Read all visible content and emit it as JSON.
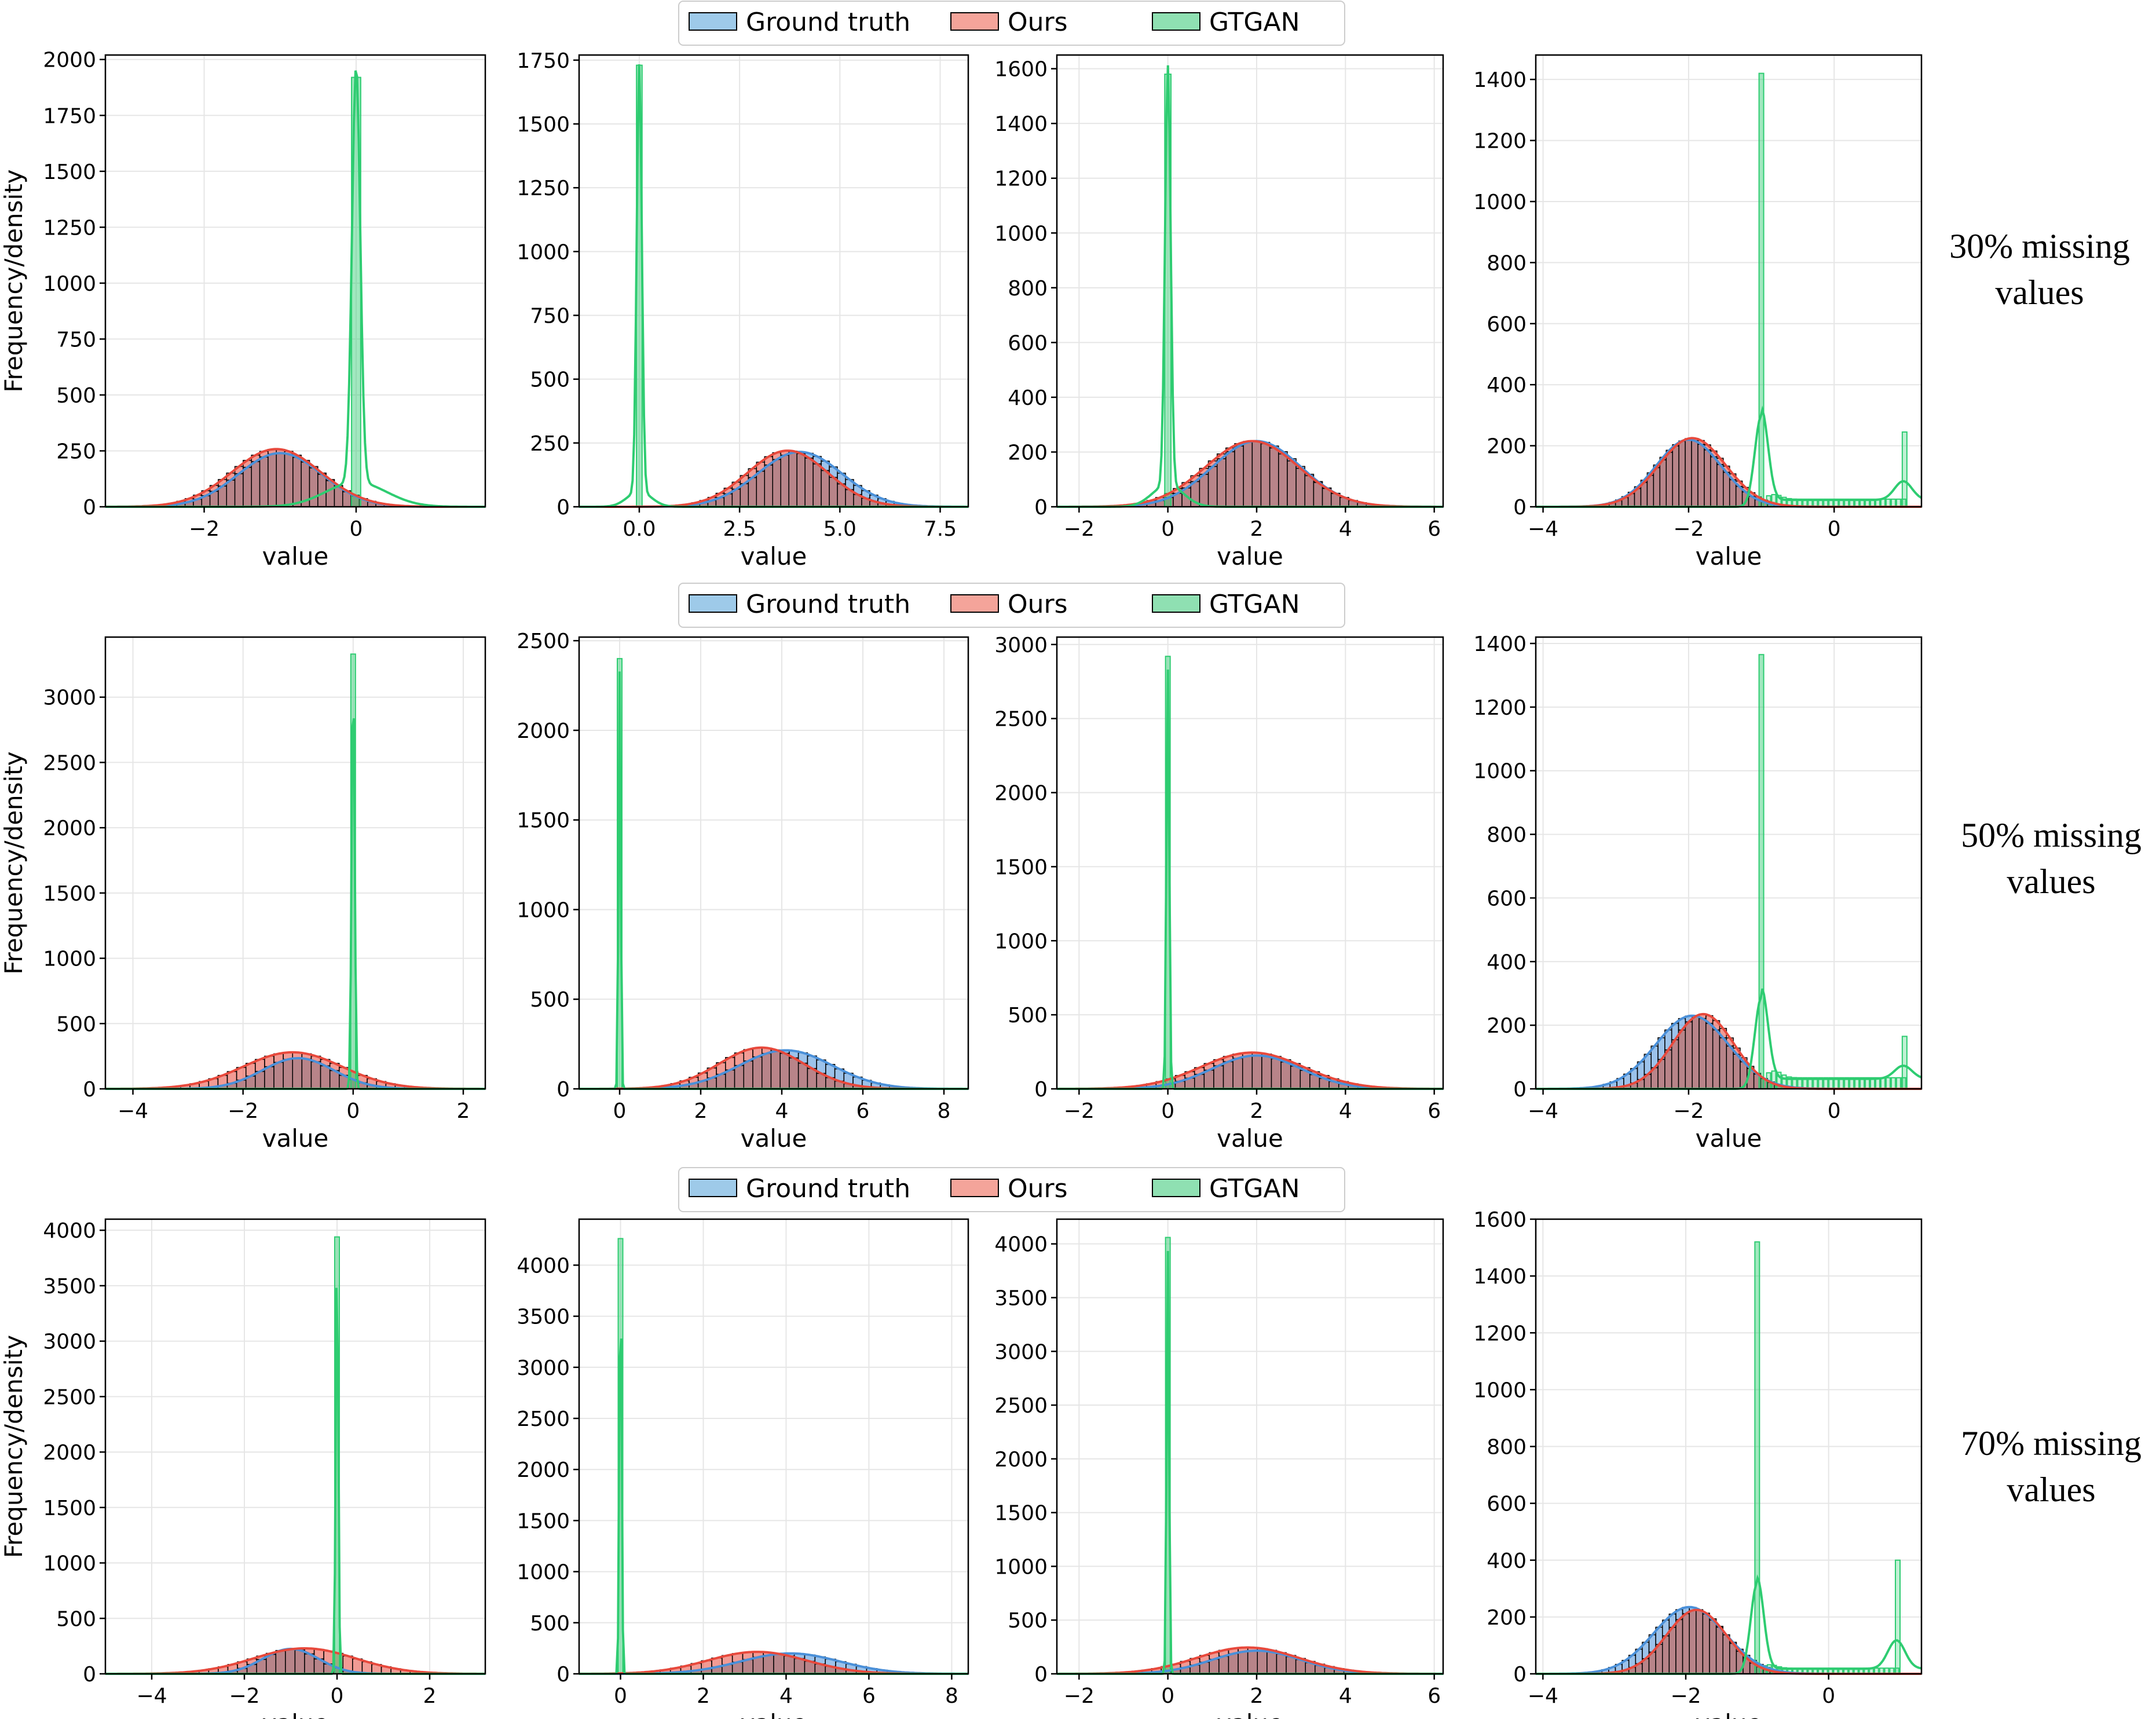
{
  "figure": {
    "row_labels": [
      {
        "line1": "30% missing",
        "line2": "values"
      },
      {
        "line1": "50% missing",
        "line2": "values"
      },
      {
        "line1": "70% missing",
        "line2": "values"
      }
    ],
    "ylabel": "Frequency/density",
    "xlabel": "value"
  },
  "legend": [
    {
      "label": "Ground truth",
      "fill": "#9ecae9",
      "stroke": "#000000"
    },
    {
      "label": "Ours",
      "fill": "#f4a49a",
      "stroke": "#000000"
    },
    {
      "label": "GTGAN",
      "fill": "#8fe0b2",
      "stroke": "#000000"
    }
  ],
  "colors": {
    "ground_truth": "#4a90d9",
    "ours": "#e8493c",
    "gtgan": "#2ecc71",
    "overlap": "#b88489",
    "grid": "#e6e6e6"
  },
  "chart_data": [
    {
      "type": "histogram",
      "row": 0,
      "col": 0,
      "xlabel": "value",
      "ylabel": "Frequency/density",
      "xlim": [
        -3.3,
        1.7
      ],
      "ylim": [
        0,
        2020
      ],
      "xticks": [
        -2,
        0
      ],
      "yticks": [
        0,
        250,
        500,
        750,
        1000,
        1250,
        1500,
        1750,
        2000
      ],
      "series": [
        {
          "name": "Ground truth",
          "shape": "normal",
          "mean": -1.0,
          "sd": 0.55,
          "peak": 240
        },
        {
          "name": "Ours",
          "shape": "normal",
          "mean": -1.05,
          "sd": 0.58,
          "peak": 258
        },
        {
          "name": "GTGAN",
          "shape": "spike",
          "center": 0.0,
          "width": 0.12,
          "peak": 1920,
          "base_sd": 0.4,
          "base_peak": 110
        }
      ]
    },
    {
      "type": "histogram",
      "row": 0,
      "col": 1,
      "xlabel": "value",
      "ylabel": "",
      "xlim": [
        -1.5,
        8.2
      ],
      "ylim": [
        0,
        1770
      ],
      "xticks": [
        0.0,
        2.5,
        5.0,
        7.5
      ],
      "yticks": [
        0,
        250,
        500,
        750,
        1000,
        1250,
        1500,
        1750
      ],
      "series": [
        {
          "name": "Ground truth",
          "shape": "normal",
          "mean": 4.0,
          "sd": 1.05,
          "peak": 215
        },
        {
          "name": "Ours",
          "shape": "normal",
          "mean": 3.7,
          "sd": 1.0,
          "peak": 220
        },
        {
          "name": "GTGAN",
          "shape": "spike",
          "center": 0.0,
          "width": 0.14,
          "peak": 1730,
          "base_sd": 0.3,
          "base_peak": 60
        }
      ]
    },
    {
      "type": "histogram",
      "row": 0,
      "col": 2,
      "xlabel": "value",
      "ylabel": "",
      "xlim": [
        -2.5,
        6.2
      ],
      "ylim": [
        0,
        1650
      ],
      "xticks": [
        -2,
        0,
        2,
        4,
        6
      ],
      "yticks": [
        0,
        200,
        400,
        600,
        800,
        1000,
        1200,
        1400,
        1600
      ],
      "series": [
        {
          "name": "Ground truth",
          "shape": "normal",
          "mean": 2.0,
          "sd": 1.0,
          "peak": 240
        },
        {
          "name": "Ours",
          "shape": "normal",
          "mean": 1.9,
          "sd": 1.05,
          "peak": 240
        },
        {
          "name": "GTGAN",
          "shape": "spike",
          "center": 0.0,
          "width": 0.14,
          "peak": 1580,
          "base_sd": 0.35,
          "base_peak": 80
        }
      ]
    },
    {
      "type": "histogram",
      "row": 0,
      "col": 3,
      "xlabel": "value",
      "ylabel": "",
      "xlim": [
        -4.1,
        1.2
      ],
      "ylim": [
        0,
        1480
      ],
      "xticks": [
        -4,
        -2,
        0
      ],
      "yticks": [
        0,
        200,
        400,
        600,
        800,
        1000,
        1200,
        1400
      ],
      "series": [
        {
          "name": "Ground truth",
          "shape": "normal",
          "mean": -2.0,
          "sd": 0.45,
          "peak": 220
        },
        {
          "name": "Ours",
          "shape": "normal",
          "mean": -1.95,
          "sd": 0.46,
          "peak": 225
        },
        {
          "name": "GTGAN",
          "shape": "spike",
          "center": -1.0,
          "width": 0.06,
          "peak": 1420,
          "tail_level": 25,
          "tail_end": 1.0,
          "end_peak": 245
        }
      ]
    },
    {
      "type": "histogram",
      "row": 1,
      "col": 0,
      "xlabel": "value",
      "ylabel": "Frequency/density",
      "xlim": [
        -4.5,
        2.4
      ],
      "ylim": [
        0,
        3460
      ],
      "xticks": [
        -4,
        -2,
        0,
        2
      ],
      "yticks": [
        0,
        500,
        1000,
        1500,
        2000,
        2500,
        3000
      ],
      "series": [
        {
          "name": "Ground truth",
          "shape": "normal",
          "mean": -1.0,
          "sd": 0.65,
          "peak": 235
        },
        {
          "name": "Ours",
          "shape": "normal",
          "mean": -1.1,
          "sd": 0.9,
          "peak": 280
        },
        {
          "name": "GTGAN",
          "shape": "spike",
          "center": 0.0,
          "width": 0.06,
          "peak": 3330
        }
      ]
    },
    {
      "type": "histogram",
      "row": 1,
      "col": 1,
      "xlabel": "value",
      "ylabel": "",
      "xlim": [
        -1.0,
        8.6
      ],
      "ylim": [
        0,
        2520
      ],
      "xticks": [
        0,
        2,
        4,
        6,
        8
      ],
      "yticks": [
        0,
        500,
        1000,
        1500,
        2000,
        2500
      ],
      "series": [
        {
          "name": "Ground truth",
          "shape": "normal",
          "mean": 4.1,
          "sd": 1.15,
          "peak": 215
        },
        {
          "name": "Ours",
          "shape": "normal",
          "mean": 3.5,
          "sd": 1.05,
          "peak": 230
        },
        {
          "name": "GTGAN",
          "shape": "spike",
          "center": 0.0,
          "width": 0.06,
          "peak": 2400
        }
      ]
    },
    {
      "type": "histogram",
      "row": 1,
      "col": 2,
      "xlabel": "value",
      "ylabel": "",
      "xlim": [
        -2.5,
        6.2
      ],
      "ylim": [
        0,
        3050
      ],
      "xticks": [
        -2,
        0,
        2,
        4,
        6
      ],
      "yticks": [
        0,
        500,
        1000,
        1500,
        2000,
        2500,
        3000
      ],
      "series": [
        {
          "name": "Ground truth",
          "shape": "normal",
          "mean": 2.0,
          "sd": 1.0,
          "peak": 225
        },
        {
          "name": "Ours",
          "shape": "normal",
          "mean": 1.9,
          "sd": 1.15,
          "peak": 245
        },
        {
          "name": "GTGAN",
          "shape": "spike",
          "center": 0.0,
          "width": 0.07,
          "peak": 2920
        }
      ]
    },
    {
      "type": "histogram",
      "row": 1,
      "col": 3,
      "xlabel": "value",
      "ylabel": "",
      "xlim": [
        -4.1,
        1.2
      ],
      "ylim": [
        0,
        1420
      ],
      "xticks": [
        -4,
        -2,
        0
      ],
      "yticks": [
        0,
        200,
        400,
        600,
        800,
        1000,
        1200,
        1400
      ],
      "series": [
        {
          "name": "Ground truth",
          "shape": "normal",
          "mean": -1.95,
          "sd": 0.5,
          "peak": 230
        },
        {
          "name": "Ours",
          "shape": "normal",
          "mean": -1.8,
          "sd": 0.42,
          "peak": 235
        },
        {
          "name": "GTGAN",
          "shape": "spike",
          "center": -1.0,
          "width": 0.06,
          "peak": 1365,
          "tail_level": 35,
          "tail_end": 1.0,
          "end_peak": 165
        }
      ]
    },
    {
      "type": "histogram",
      "row": 2,
      "col": 0,
      "xlabel": "value",
      "ylabel": "Frequency/density",
      "xlim": [
        -5.0,
        3.2
      ],
      "ylim": [
        0,
        4100
      ],
      "xticks": [
        -4,
        -2,
        0,
        2
      ],
      "yticks": [
        0,
        500,
        1000,
        1500,
        2000,
        2500,
        3000,
        3500,
        4000
      ],
      "series": [
        {
          "name": "Ground truth",
          "shape": "normal",
          "mean": -1.0,
          "sd": 0.6,
          "peak": 225
        },
        {
          "name": "Ours",
          "shape": "normal",
          "mean": -0.7,
          "sd": 1.1,
          "peak": 230
        },
        {
          "name": "GTGAN",
          "shape": "spike",
          "center": 0.0,
          "width": 0.06,
          "peak": 3940
        }
      ]
    },
    {
      "type": "histogram",
      "row": 2,
      "col": 1,
      "xlabel": "value",
      "ylabel": "",
      "xlim": [
        -1.0,
        8.4
      ],
      "ylim": [
        0,
        4450
      ],
      "xticks": [
        0,
        2,
        4,
        6,
        8
      ],
      "yticks": [
        0,
        500,
        1000,
        1500,
        2000,
        2500,
        3000,
        3500,
        4000
      ],
      "series": [
        {
          "name": "Ground truth",
          "shape": "normal",
          "mean": 4.1,
          "sd": 1.2,
          "peak": 200
        },
        {
          "name": "Ours",
          "shape": "normal",
          "mean": 3.3,
          "sd": 1.2,
          "peak": 215
        },
        {
          "name": "GTGAN",
          "shape": "spike",
          "center": 0.0,
          "width": 0.06,
          "peak": 4260
        }
      ]
    },
    {
      "type": "histogram",
      "row": 2,
      "col": 2,
      "xlabel": "value",
      "ylabel": "",
      "xlim": [
        -2.5,
        6.2
      ],
      "ylim": [
        0,
        4230
      ],
      "xticks": [
        -2,
        0,
        2,
        4,
        6
      ],
      "yticks": [
        0,
        500,
        1000,
        1500,
        2000,
        2500,
        3000,
        3500,
        4000
      ],
      "series": [
        {
          "name": "Ground truth",
          "shape": "normal",
          "mean": 2.0,
          "sd": 1.0,
          "peak": 215
        },
        {
          "name": "Ours",
          "shape": "normal",
          "mean": 1.8,
          "sd": 1.15,
          "peak": 245
        },
        {
          "name": "GTGAN",
          "shape": "spike",
          "center": 0.0,
          "width": 0.06,
          "peak": 4060
        }
      ]
    },
    {
      "type": "histogram",
      "row": 2,
      "col": 3,
      "xlabel": "value",
      "ylabel": "",
      "xlim": [
        -4.1,
        1.3
      ],
      "ylim": [
        0,
        1600
      ],
      "xticks": [
        -4,
        -2,
        0
      ],
      "yticks": [
        0,
        200,
        400,
        600,
        800,
        1000,
        1200,
        1400,
        1600
      ],
      "series": [
        {
          "name": "Ground truth",
          "shape": "normal",
          "mean": -1.95,
          "sd": 0.5,
          "peak": 235
        },
        {
          "name": "Ours",
          "shape": "normal",
          "mean": -1.85,
          "sd": 0.42,
          "peak": 225
        },
        {
          "name": "GTGAN",
          "shape": "spike",
          "center": -1.0,
          "width": 0.06,
          "peak": 1520,
          "tail_level": 20,
          "tail_end": 1.0,
          "end_peak": 400
        }
      ]
    }
  ]
}
